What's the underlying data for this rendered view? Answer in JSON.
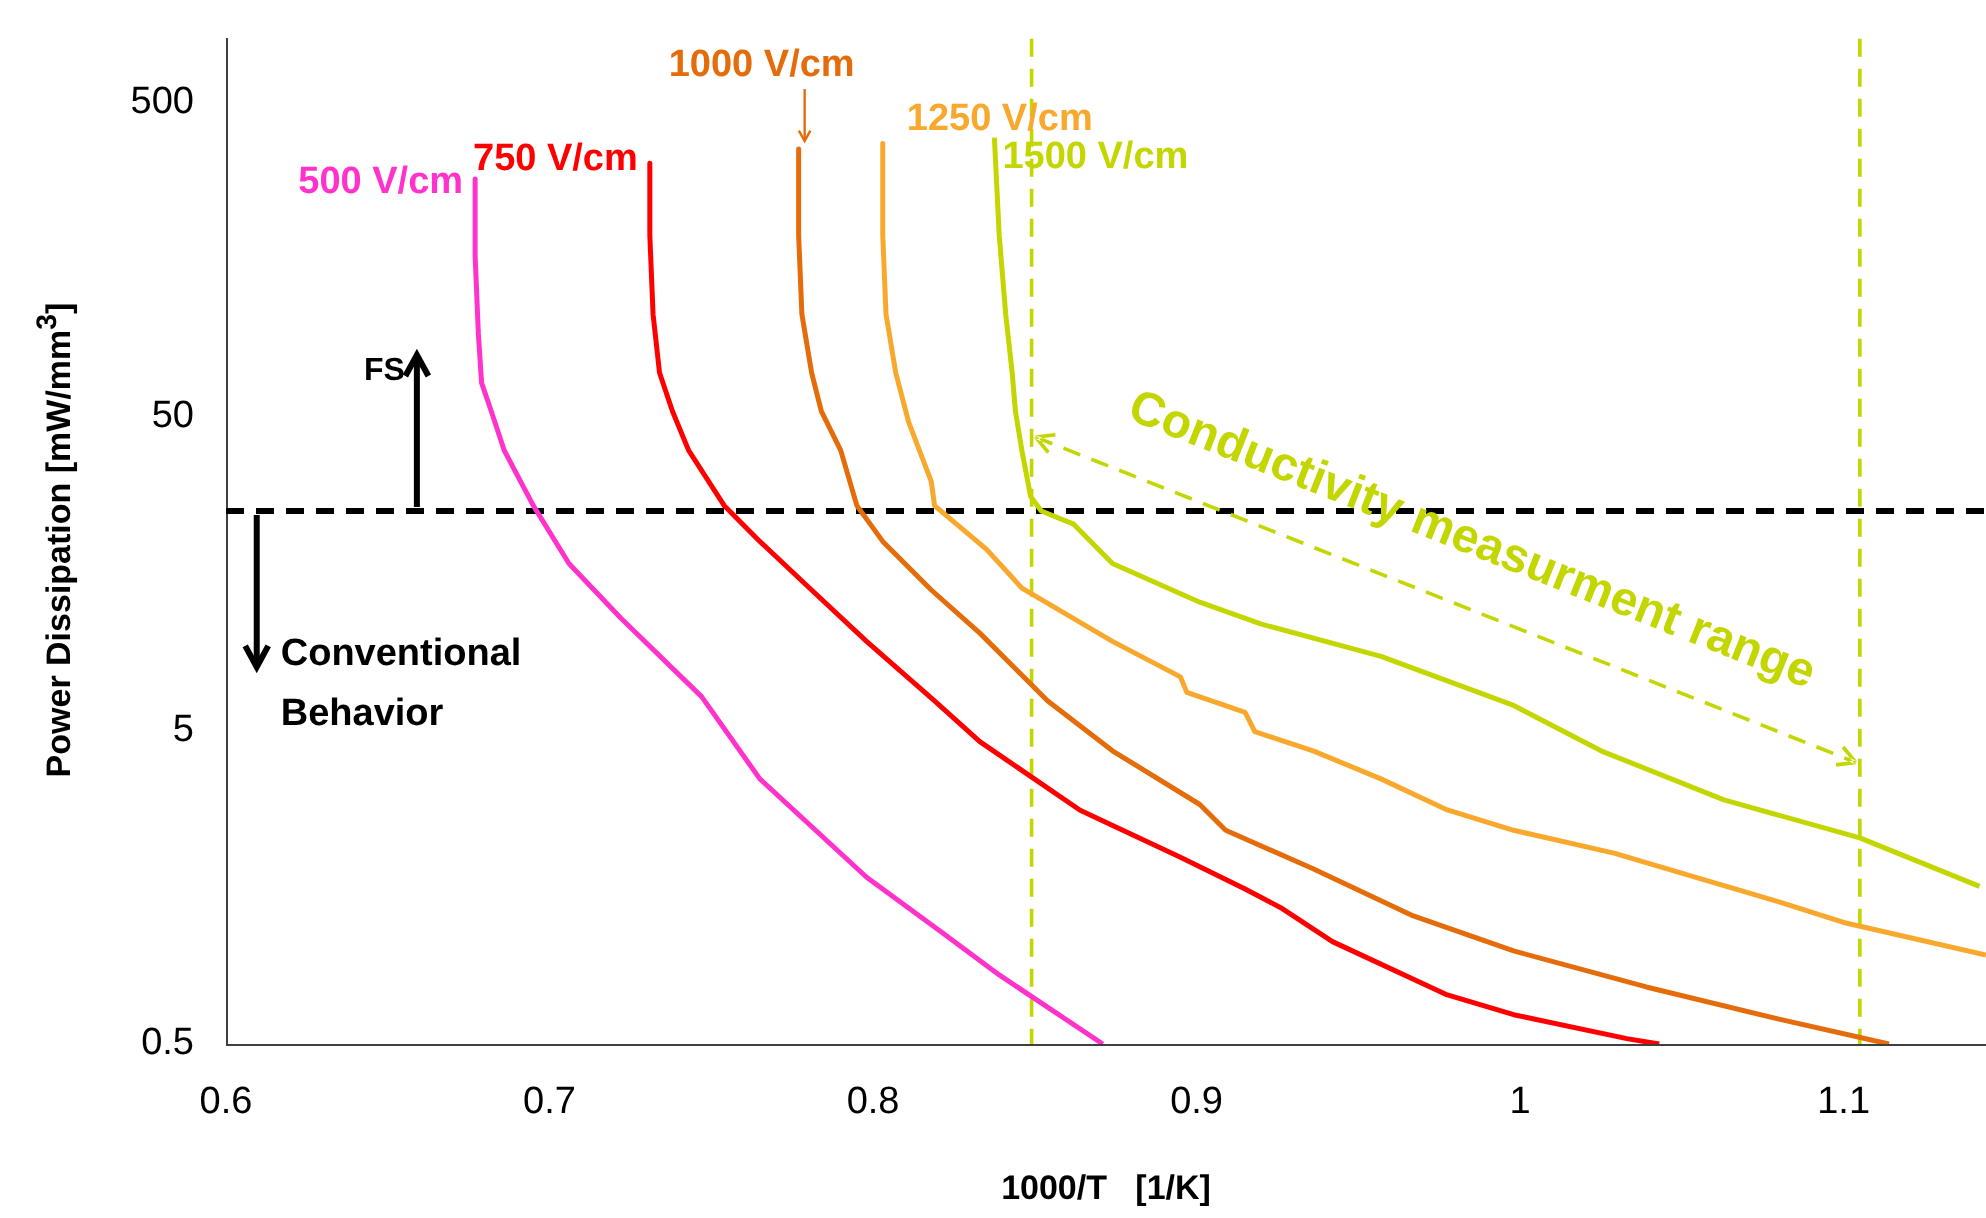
{
  "chart_data": {
    "type": "line",
    "xlabel": "1000/T   [1/K]",
    "ylabel": "Power Dissipation  [mW/mm$^{3}$]",
    "xlim": [
      0.6,
      1.144
    ],
    "xticks": [
      0.6,
      0.7,
      0.8,
      0.9,
      1,
      1.1
    ],
    "ylim": [
      0.5,
      800
    ],
    "yticks": [
      0.5,
      5,
      50,
      500
    ],
    "log": "y",
    "grid": false,
    "marker": "none",
    "line_style": "solid",
    "series": [
      {
        "name": "500 V/cm",
        "color": "#ff33cc",
        "x": [
          0.677,
          0.677,
          0.678,
          0.679,
          0.682,
          0.686,
          0.695,
          0.706,
          0.722,
          0.747,
          0.765,
          0.798,
          0.821,
          0.839,
          0.871
        ],
        "values": [
          286,
          163,
          92,
          64,
          52,
          39,
          26,
          17,
          11.4,
          6.4,
          3.5,
          1.7,
          1.14,
          0.83,
          0.5
        ]
      },
      {
        "name": "750 V/cm",
        "color": "#ff0000",
        "x": [
          0.731,
          0.731,
          0.732,
          0.734,
          0.738,
          0.743,
          0.754,
          0.765,
          0.781,
          0.798,
          0.819,
          0.833,
          0.864,
          0.895,
          0.915,
          0.926,
          0.942,
          0.977,
          0.998,
          1.033,
          1.043
        ],
        "values": [
          321,
          189,
          106,
          69,
          52,
          39,
          26,
          20,
          14,
          9.6,
          6.2,
          4.6,
          2.78,
          1.97,
          1.56,
          1.36,
          1.06,
          0.72,
          0.62,
          0.52,
          0.5
        ]
      },
      {
        "name": "1000 V/cm",
        "color": "#e46c0a",
        "x": [
          0.777,
          0.777,
          0.778,
          0.781,
          0.784,
          0.79,
          0.795,
          0.803,
          0.818,
          0.833,
          0.854,
          0.874,
          0.901,
          0.909,
          0.936,
          0.967,
          0.998,
          1.039,
          1.08,
          1.114
        ],
        "values": [
          356,
          189,
          106,
          69,
          52,
          39,
          26,
          20,
          14,
          10.2,
          6.2,
          4.3,
          2.9,
          2.4,
          1.81,
          1.28,
          0.99,
          0.76,
          0.6,
          0.5
        ]
      },
      {
        "name": "1250 V/cm",
        "color": "#f9a82e",
        "x": [
          0.803,
          0.803,
          0.804,
          0.807,
          0.811,
          0.818,
          0.819,
          0.835,
          0.846,
          0.874,
          0.895,
          0.897,
          0.915,
          0.918,
          0.936,
          0.957,
          0.977,
          0.998,
          1.029,
          1.08,
          1.1,
          1.144
        ],
        "values": [
          371,
          189,
          106,
          69,
          48,
          31,
          26,
          18.9,
          14.2,
          9.6,
          7.4,
          6.6,
          5.7,
          4.95,
          4.3,
          3.5,
          2.8,
          2.4,
          2.03,
          1.42,
          1.22,
          0.96
        ]
      },
      {
        "name": "1500 V/cm",
        "color": "#c3d600",
        "x": [
          0.8375,
          0.839,
          0.841,
          0.843,
          0.844,
          0.846,
          0.8487,
          0.852,
          0.862,
          0.874,
          0.901,
          0.92,
          0.957,
          0.998,
          1.025,
          1.063,
          1.105,
          1.142
        ],
        "values": [
          387,
          189,
          106,
          69,
          52,
          39,
          27.8,
          25,
          22.7,
          17,
          12.8,
          10.9,
          8.6,
          6,
          4.3,
          3,
          2.27,
          1.59
        ]
      }
    ],
    "ref_lines": [
      {
        "axis": "y",
        "value": 25,
        "color": "#000000",
        "line_style": "dashed"
      },
      {
        "axis": "x",
        "value": 0.849,
        "color": "#c3d600",
        "line_style": "dashed"
      },
      {
        "axis": "x",
        "value": 1.105,
        "color": "#c3d600",
        "line_style": "dashed"
      }
    ],
    "legend": false,
    "annotations": [
      {
        "text": "FS",
        "x": 0.659,
        "y": 25
      },
      {
        "text": "Conventional Behavior",
        "x": 0.6095,
        "y": 25
      },
      {
        "text": "Conductivity measurment range",
        "x": 0.849,
        "y": 43
      }
    ]
  }
}
